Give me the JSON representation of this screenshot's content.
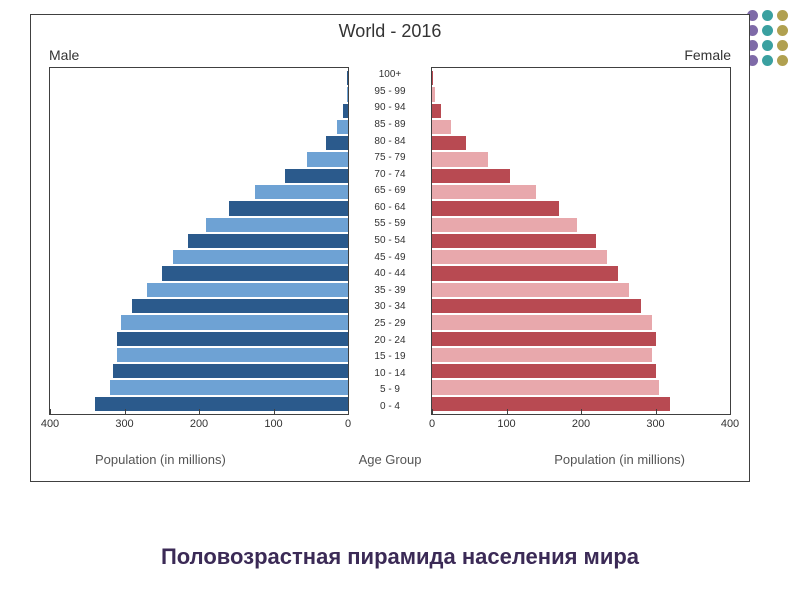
{
  "decoration_dots": {
    "colors": [
      "#7e6aa8",
      "#3aa0a0",
      "#b0a050",
      "#7e6aa8",
      "#3aa0a0",
      "#b0a050",
      "#7e6aa8",
      "#3aa0a0",
      "#b0a050",
      "#7e6aa8",
      "#3aa0a0",
      "#b0a050"
    ]
  },
  "chart": {
    "type": "population-pyramid",
    "title": "World - 2016",
    "male_label": "Male",
    "female_label": "Female",
    "age_group_label": "Age Group",
    "x_caption": "Population (in millions)",
    "x_max": 400,
    "x_ticks": [
      0,
      100,
      200,
      300,
      400
    ],
    "border_color": "#404040",
    "background_color": "#ffffff",
    "title_fontsize": 18,
    "age_groups": [
      "100+",
      "95 - 99",
      "90 - 94",
      "85 - 89",
      "80 - 84",
      "75 - 79",
      "70 - 74",
      "65 - 69",
      "60 - 64",
      "55 - 59",
      "50 - 54",
      "45 - 49",
      "40 - 44",
      "35 - 39",
      "30 - 34",
      "25 - 29",
      "20 - 24",
      "15 - 19",
      "10 - 14",
      "5 - 9",
      "0 - 4"
    ],
    "male": {
      "values": [
        1,
        2,
        7,
        15,
        30,
        55,
        85,
        125,
        160,
        190,
        215,
        235,
        250,
        270,
        290,
        305,
        310,
        310,
        315,
        320,
        340
      ],
      "colors": [
        "#2b5a8c",
        "#6ea2d4",
        "#2b5a8c",
        "#6ea2d4",
        "#2b5a8c",
        "#6ea2d4",
        "#2b5a8c",
        "#6ea2d4",
        "#2b5a8c",
        "#6ea2d4",
        "#2b5a8c",
        "#6ea2d4",
        "#2b5a8c",
        "#6ea2d4",
        "#2b5a8c",
        "#6ea2d4",
        "#2b5a8c",
        "#6ea2d4",
        "#2b5a8c",
        "#6ea2d4",
        "#2b5a8c"
      ]
    },
    "female": {
      "values": [
        2,
        4,
        12,
        25,
        45,
        75,
        105,
        140,
        170,
        195,
        220,
        235,
        250,
        265,
        280,
        295,
        300,
        295,
        300,
        305,
        320
      ],
      "colors": [
        "#b84a52",
        "#e8a8ac",
        "#b84a52",
        "#e8a8ac",
        "#b84a52",
        "#e8a8ac",
        "#b84a52",
        "#e8a8ac",
        "#b84a52",
        "#e8a8ac",
        "#b84a52",
        "#e8a8ac",
        "#b84a52",
        "#e8a8ac",
        "#b84a52",
        "#e8a8ac",
        "#b84a52",
        "#e8a8ac",
        "#b84a52",
        "#e8a8ac",
        "#b84a52"
      ]
    }
  },
  "caption": "Половозрастная пирамида населения мира"
}
